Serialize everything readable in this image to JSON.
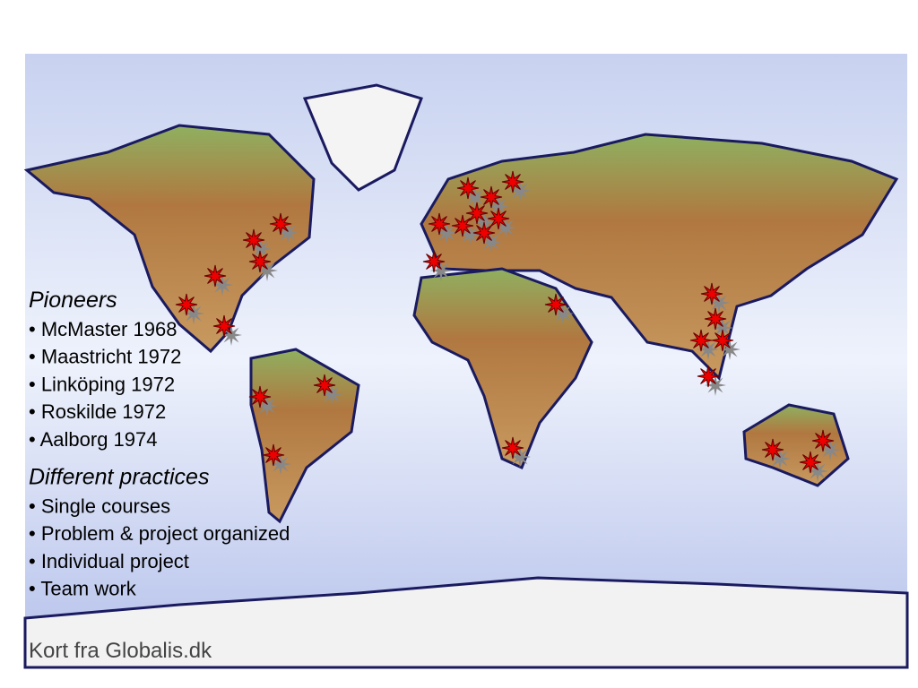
{
  "sections": [
    {
      "heading": "Pioneers",
      "items": [
        "• McMaster 1968",
        "• Maastricht 1972",
        "• Linköping 1972",
        "• Roskilde 1972",
        "• Aalborg 1974"
      ]
    },
    {
      "heading": "Different practices",
      "items": [
        "• Single courses",
        "• Problem & project organized",
        "• Individual project",
        "• Team work"
      ]
    }
  ],
  "credit": "Kort fra Globalis.dk"
}
